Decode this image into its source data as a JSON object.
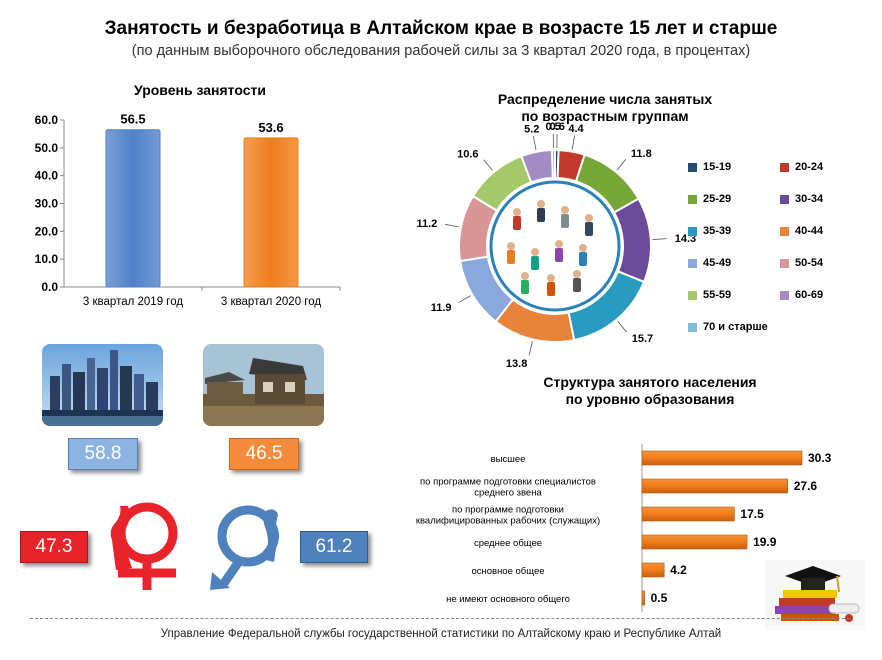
{
  "header": {
    "title": "Занятость и безработица в Алтайском крае в возрасте 15 лет и старше",
    "subtitle": "(по данным выборочного обследования рабочей силы за 3 квартал 2020 года, в процентах)"
  },
  "chart_data": [
    {
      "type": "bar",
      "title": "Уровень занятости",
      "categories": [
        "3 квартал 2019 год",
        "3 квартал 2020 год"
      ],
      "values": [
        56.5,
        53.6
      ],
      "ylim": [
        0,
        60
      ],
      "yticks": [
        "0.0",
        "10.0",
        "20.0",
        "30.0",
        "40.0",
        "50.0",
        "60.0"
      ],
      "value_labels": [
        "56.5",
        "53.6"
      ],
      "colors": [
        "#4f81c9",
        "#f07d1a"
      ]
    },
    {
      "type": "pie",
      "title": "Распределение числа занятых по возрастным группам",
      "categories": [
        "15-19",
        "20-24",
        "25-29",
        "30-34",
        "35-39",
        "40-44",
        "45-49",
        "50-54",
        "55-59",
        "60-69",
        "70 и старше"
      ],
      "values": [
        0.6,
        4.4,
        11.8,
        14.3,
        15.7,
        13.8,
        11.9,
        11.2,
        10.6,
        5.2,
        0.5
      ],
      "value_labels": [
        "0.6",
        "4.4",
        "11.8",
        "14.3",
        "15.7",
        "13.8",
        "11.9",
        "11.2",
        "10.6",
        "5.2",
        "0.5"
      ],
      "colors": [
        "#1f4e79",
        "#c0392b",
        "#77a737",
        "#6b4c9a",
        "#2a9bc0",
        "#e8843a",
        "#8aa8dc",
        "#d99696",
        "#a5c86a",
        "#a38cc4",
        "#7cc0d8"
      ]
    },
    {
      "type": "bar",
      "orientation": "horizontal",
      "title": "Структура занятого населения по уровню образования",
      "categories": [
        "высшее",
        "по программе подготовки специалистов среднего звена",
        "по программе подготовки квалифицированных рабочих (служащих)",
        "среднее общее",
        "основное общее",
        "не имеют основного общего"
      ],
      "category_lines": [
        [
          "высшее"
        ],
        [
          "по программе подготовки специалистов",
          "среднего звена"
        ],
        [
          "по программе подготовки",
          "квалифицированных рабочих (служащих)"
        ],
        [
          "среднее общее"
        ],
        [
          "основное общее"
        ],
        [
          "не имеют основного общего"
        ]
      ],
      "values": [
        30.3,
        27.6,
        17.5,
        19.9,
        4.2,
        0.5
      ],
      "value_labels": [
        "30.3",
        "27.6",
        "17.5",
        "19.9",
        "4.2",
        "0.5"
      ],
      "color": "#f07d1a"
    }
  ],
  "panels": {
    "city_value": "58.8",
    "village_value": "46.5",
    "female_value": "47.3",
    "male_value": "61.2",
    "city_color": "#8db3e2",
    "village_color": "#f58c3c",
    "female_color": "#e8232a",
    "male_color": "#4f81bd"
  },
  "footer": "Управление Федеральной службы государственной статистики по Алтайскому краю и Республике Алтай"
}
